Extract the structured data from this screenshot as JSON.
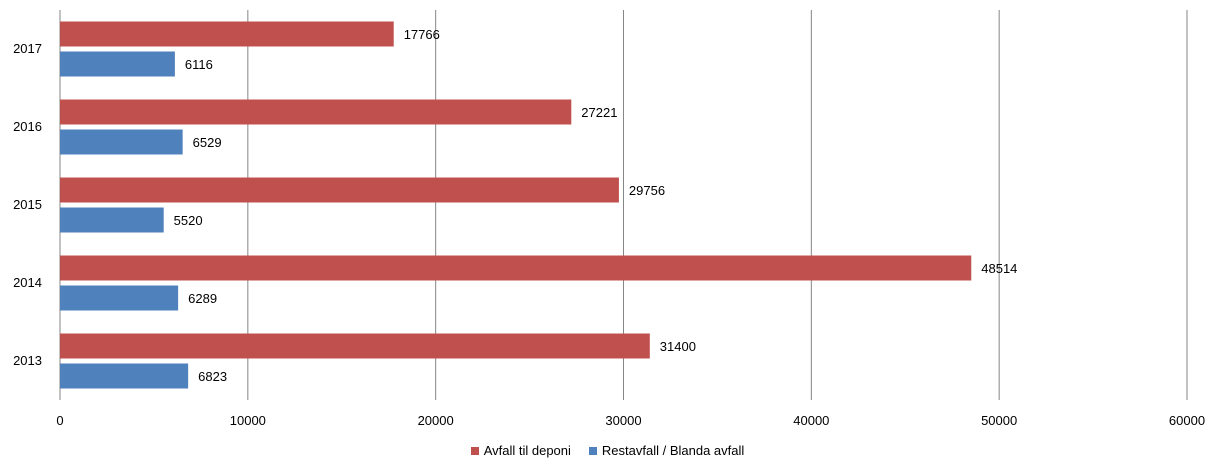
{
  "chart_data": {
    "type": "bar",
    "orientation": "horizontal",
    "categories": [
      "2017",
      "2016",
      "2015",
      "2014",
      "2013"
    ],
    "series": [
      {
        "name": "Avfall til deponi",
        "color": "#C0504D",
        "values": [
          17766,
          27221,
          29756,
          48514,
          31400
        ],
        "value_labels": [
          "17766",
          "27221",
          "29756",
          "48514",
          "31400"
        ]
      },
      {
        "name": "Restavfall / Blanda avfall",
        "color": "#4F81BD",
        "values": [
          6116,
          6529,
          5520,
          6289,
          6823
        ],
        "value_labels": [
          "6116",
          "6529",
          "5520",
          "6289",
          "6823"
        ]
      }
    ],
    "x_ticks": [
      "0",
      "10000",
      "20000",
      "30000",
      "40000",
      "50000",
      "60000"
    ],
    "xlim": [
      0,
      60000
    ],
    "grid": true,
    "legend_position": "bottom"
  }
}
